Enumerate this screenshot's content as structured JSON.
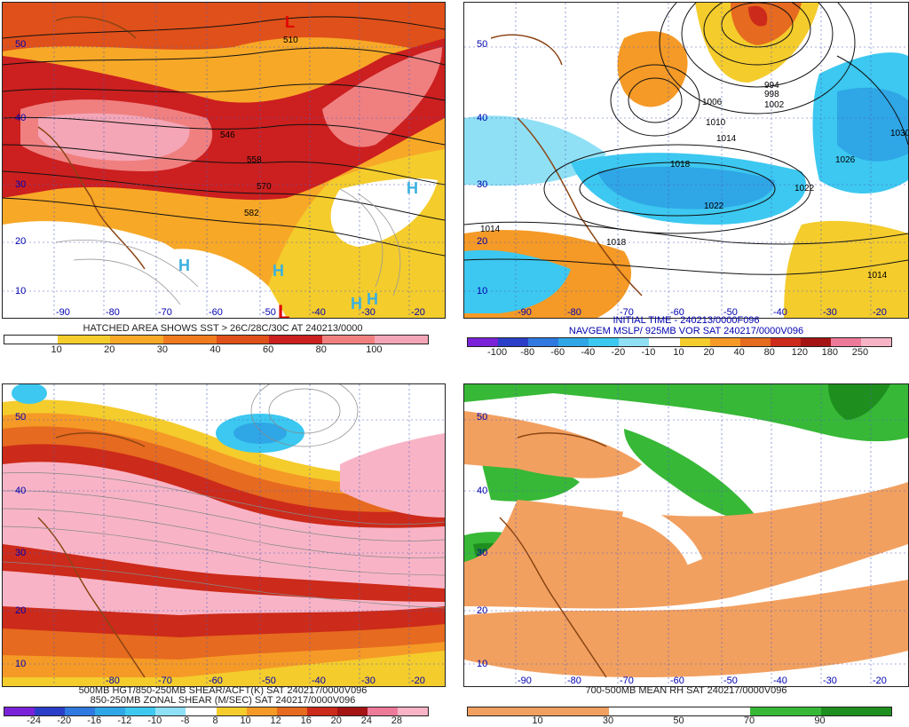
{
  "panels": [
    {
      "id": "sst-heat",
      "caption": [
        "HATCHED AREA SHOWS SST > 26C/28C/30C AT 240213/0000"
      ],
      "colorbar": {
        "colors": [
          "#ffffff",
          "#f4cc2c",
          "#f7a827",
          "#f07b1f",
          "#e0501a",
          "#cc1f1f",
          "#f08080",
          "#f4a6b6"
        ],
        "labels": [
          "10",
          "20",
          "30",
          "40",
          "60",
          "80",
          "100"
        ]
      },
      "lat_labels": [
        "50",
        "40",
        "30",
        "20",
        "10"
      ],
      "lon_labels": [
        "-90",
        "-80",
        "-70",
        "-60",
        "-50",
        "-40",
        "-30",
        "-20"
      ],
      "contour_labels": [
        "510",
        "546",
        "558",
        "570",
        "582"
      ],
      "markers": [
        {
          "t": "L",
          "c": "#e00000"
        },
        {
          "t": "L",
          "c": "#e00000"
        },
        {
          "t": "H",
          "c": "#3ab0e0"
        },
        {
          "t": "H",
          "c": "#3ab0e0"
        },
        {
          "t": "H",
          "c": "#3ab0e0"
        },
        {
          "t": "H",
          "c": "#3ab0e0"
        },
        {
          "t": "H",
          "c": "#3ab0e0"
        }
      ]
    },
    {
      "id": "mslp-vort",
      "caption": [
        "INITIAL TIME - 240213/0000F096",
        "NAVGEM MSLP/ 925MB VOR SAT 240217/0000V096"
      ],
      "colorbar": {
        "colors": [
          "#7a22d8",
          "#2a3ec8",
          "#2f79e0",
          "#2fa6e6",
          "#3cc8f0",
          "#8fe0f5",
          "#ffffff",
          "#f4cc2c",
          "#f59a26",
          "#e66a1f",
          "#cc2a1a",
          "#a51414",
          "#ee7a9a",
          "#f8b4c6"
        ],
        "labels": [
          "-100",
          "-80",
          "-60",
          "-40",
          "-20",
          "-10",
          "10",
          "20",
          "40",
          "80",
          "120",
          "180",
          "250"
        ]
      },
      "lat_labels": [
        "50",
        "40",
        "30",
        "20",
        "10"
      ],
      "lon_labels": [
        "-90",
        "-80",
        "-70",
        "-60",
        "-50",
        "-40",
        "-30",
        "-20"
      ],
      "contour_labels": [
        "1006",
        "1010",
        "1014",
        "1018",
        "1022",
        "1026",
        "1030",
        "1022",
        "1014",
        "1018",
        "1014",
        "994",
        "998",
        "1002"
      ]
    },
    {
      "id": "zonal-shear",
      "caption": [
        "500MB HGT/850-250MB SHEAR/ACFT(K) SAT 240217/0000V096",
        "850-250MB ZONAL SHEAR (M/SEC) SAT 240217/0000V096"
      ],
      "colorbar": {
        "colors": [
          "#7a22d8",
          "#2a3ec8",
          "#2f79e0",
          "#2fa6e6",
          "#3cc8f0",
          "#8fe0f5",
          "#ffffff",
          "#f4cc2c",
          "#f59a26",
          "#e66a1f",
          "#cc2a1a",
          "#a51414",
          "#ee7a9a",
          "#f8b4c6"
        ],
        "labels": [
          "-24",
          "-20",
          "-16",
          "-12",
          "-10",
          "-8",
          "8",
          "10",
          "12",
          "16",
          "20",
          "24",
          "28"
        ]
      },
      "lat_labels": [
        "50",
        "40",
        "30",
        "20",
        "10"
      ],
      "lon_labels": [
        "-80",
        "-70",
        "-60",
        "-50",
        "-40",
        "-30",
        "-20"
      ]
    },
    {
      "id": "mean-rh",
      "caption": [
        "700-500MB MEAN RH SAT 240217/0000V096"
      ],
      "colorbar": {
        "colors": [
          "#f2a060",
          "#f2a060",
          "#ffffff",
          "#ffffff",
          "#37b837",
          "#1e8f1e"
        ],
        "labels": [
          "10",
          "30",
          "50",
          "70",
          "90"
        ]
      },
      "lat_labels": [
        "50",
        "40",
        "30",
        "20",
        "10"
      ],
      "lon_labels": [
        "-90",
        "-80",
        "-70",
        "-60",
        "-50",
        "-40",
        "-30",
        "-20"
      ]
    }
  ]
}
